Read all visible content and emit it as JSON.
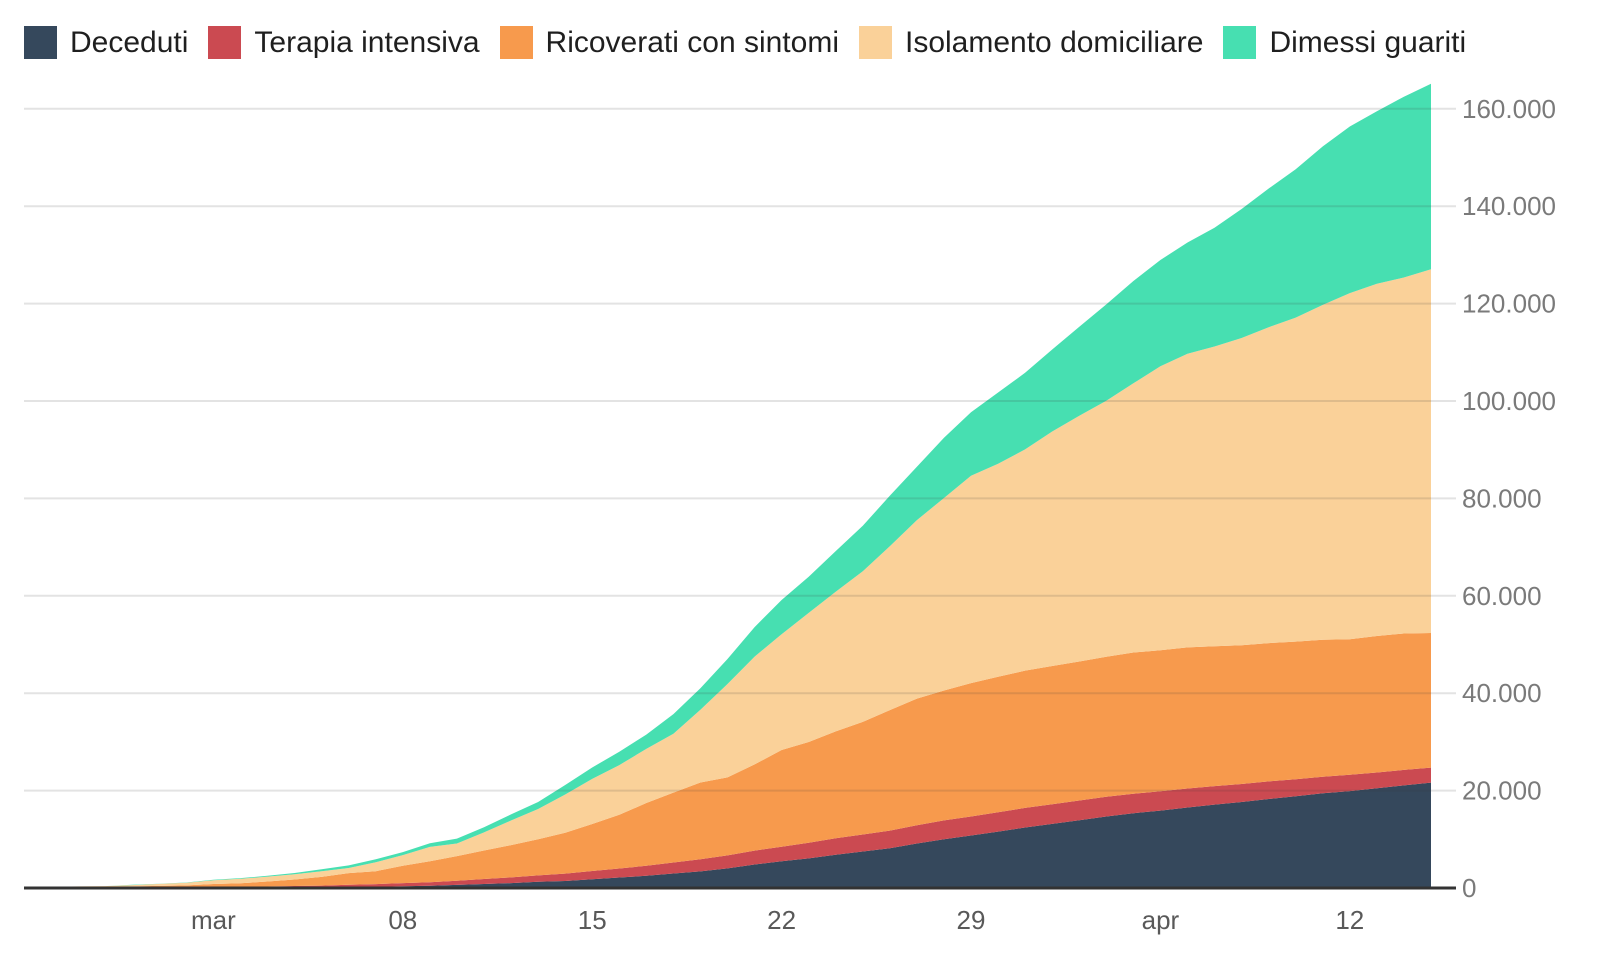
{
  "chart_data": {
    "type": "area",
    "stacked": true,
    "legend_position": "top",
    "grid": true,
    "x_dates": [
      "2020-02-23",
      "2020-02-24",
      "2020-02-25",
      "2020-02-26",
      "2020-02-27",
      "2020-02-28",
      "2020-02-29",
      "2020-03-01",
      "2020-03-02",
      "2020-03-03",
      "2020-03-04",
      "2020-03-05",
      "2020-03-06",
      "2020-03-07",
      "2020-03-08",
      "2020-03-09",
      "2020-03-10",
      "2020-03-11",
      "2020-03-12",
      "2020-03-13",
      "2020-03-14",
      "2020-03-15",
      "2020-03-16",
      "2020-03-17",
      "2020-03-18",
      "2020-03-19",
      "2020-03-20",
      "2020-03-21",
      "2020-03-22",
      "2020-03-23",
      "2020-03-24",
      "2020-03-25",
      "2020-03-26",
      "2020-03-27",
      "2020-03-28",
      "2020-03-29",
      "2020-03-30",
      "2020-03-31",
      "2020-04-01",
      "2020-04-02",
      "2020-04-03",
      "2020-04-04",
      "2020-04-05",
      "2020-04-06",
      "2020-04-07",
      "2020-04-08",
      "2020-04-09",
      "2020-04-10",
      "2020-04-11",
      "2020-04-12",
      "2020-04-13",
      "2020-04-14",
      "2020-04-15"
    ],
    "x_ticks": [
      {
        "index": 7,
        "label": "mar"
      },
      {
        "index": 14,
        "label": "08"
      },
      {
        "index": 21,
        "label": "15"
      },
      {
        "index": 28,
        "label": "22"
      },
      {
        "index": 35,
        "label": "29"
      },
      {
        "index": 42,
        "label": "apr"
      },
      {
        "index": 49,
        "label": "12"
      }
    ],
    "y_axis": {
      "min": 0,
      "max": 160000,
      "step": 20000,
      "labels": [
        "0",
        "20.000",
        "40.000",
        "60.000",
        "80.000",
        "100.000",
        "120.000",
        "140.000",
        "160.000"
      ]
    },
    "series": [
      {
        "id": "deceduti",
        "label": "Deceduti",
        "color": "#35485c",
        "values": [
          3,
          7,
          10,
          12,
          17,
          21,
          29,
          34,
          52,
          79,
          107,
          148,
          197,
          233,
          366,
          463,
          631,
          827,
          1016,
          1266,
          1441,
          1809,
          2158,
          2503,
          2978,
          3405,
          4032,
          4825,
          5476,
          6077,
          6820,
          7503,
          8165,
          9134,
          10023,
          10779,
          11591,
          12428,
          13155,
          13915,
          14681,
          15362,
          15887,
          16523,
          17127,
          17669,
          18279,
          18849,
          19468,
          19899,
          20465,
          21067,
          21645
        ]
      },
      {
        "id": "terapia-intensiva",
        "label": "Terapia intensiva",
        "color": "#cb4a51",
        "values": [
          23,
          26,
          35,
          36,
          56,
          64,
          105,
          140,
          166,
          229,
          295,
          351,
          462,
          567,
          650,
          733,
          877,
          1028,
          1153,
          1328,
          1518,
          1672,
          1851,
          2060,
          2257,
          2498,
          2655,
          2857,
          3009,
          3204,
          3396,
          3489,
          3612,
          3732,
          3856,
          3906,
          3981,
          4023,
          4035,
          4053,
          4068,
          3994,
          3977,
          3898,
          3792,
          3693,
          3605,
          3497,
          3381,
          3343,
          3260,
          3186,
          3079
        ]
      },
      {
        "id": "ricoverati-con-sintomi",
        "label": "Ricoverati con sintomi",
        "color": "#f79a4d",
        "values": [
          99,
          101,
          114,
          128,
          248,
          345,
          401,
          639,
          742,
          1034,
          1346,
          1790,
          2394,
          2651,
          3557,
          4316,
          5038,
          5838,
          6650,
          7426,
          8372,
          9663,
          11025,
          12894,
          14363,
          15757,
          16020,
          17708,
          19846,
          20692,
          21937,
          23112,
          24753,
          26029,
          26676,
          27386,
          27795,
          28192,
          28403,
          28540,
          28741,
          29010,
          28949,
          28976,
          28718,
          28485,
          28399,
          28242,
          28144,
          27847,
          28023,
          28011,
          27643
        ]
      },
      {
        "id": "isolamento-domiciliare",
        "label": "Isolamento domiciliare",
        "color": "#fad199",
        "values": [
          28,
          94,
          162,
          221,
          284,
          412,
          543,
          798,
          927,
          1000,
          1065,
          1155,
          1060,
          1843,
          2180,
          2936,
          2599,
          3724,
          5036,
          6201,
          7860,
          9268,
          10197,
          11108,
          12090,
          14935,
          19185,
          22116,
          23783,
          26522,
          28697,
          30920,
          33648,
          36653,
          39533,
          42588,
          43752,
          45420,
          48134,
          50456,
          52579,
          55270,
          58320,
          60313,
          61557,
          63084,
          64873,
          66534,
          68744,
          71063,
          72333,
          73094,
          74696
        ]
      },
      {
        "id": "dimessi-guariti",
        "label": "Dimessi guariti",
        "color": "#47dfb1",
        "values": [
          2,
          1,
          1,
          3,
          45,
          46,
          50,
          83,
          149,
          160,
          276,
          414,
          523,
          589,
          622,
          724,
          1004,
          1045,
          1258,
          1439,
          1966,
          2335,
          2749,
          2941,
          4025,
          4440,
          5129,
          6072,
          7024,
          7432,
          8326,
          9362,
          10361,
          10950,
          12384,
          13030,
          14620,
          15729,
          16847,
          18278,
          19758,
          20996,
          21815,
          22837,
          24392,
          26491,
          28470,
          30455,
          32534,
          34211,
          35435,
          37130,
          38092
        ]
      }
    ]
  }
}
